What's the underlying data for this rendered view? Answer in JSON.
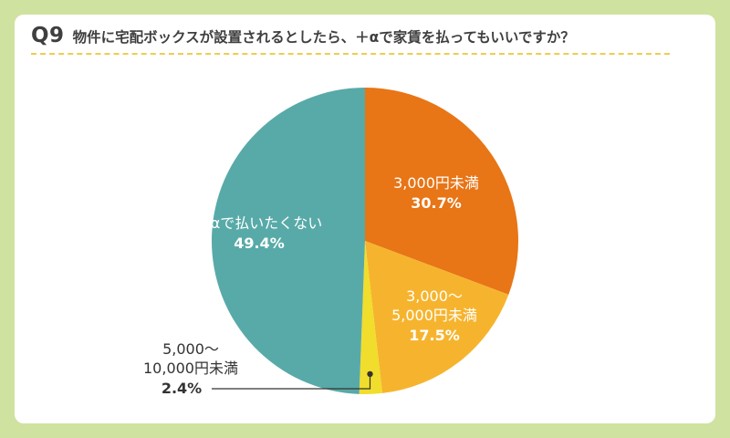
{
  "question": {
    "number": "Q9",
    "text": "物件に宅配ボックスが設置されるとしたら、＋αで家賃を払ってもいいですか？"
  },
  "chart_data": {
    "type": "pie",
    "start_angle": "12 o'clock",
    "direction": "clockwise",
    "slices": [
      {
        "label_lines": [
          "3,000円未満"
        ],
        "value": 30.7,
        "pct_label": "30.7%",
        "color": "#e87516",
        "label_color": "#ffffff"
      },
      {
        "label_lines": [
          "3,000〜",
          "5,000円未満"
        ],
        "value": 17.5,
        "pct_label": "17.5%",
        "color": "#f6b42e",
        "label_color": "#ffffff"
      },
      {
        "label_lines": [
          "5,000〜",
          "10,000円未満"
        ],
        "value": 2.4,
        "pct_label": "2.4%",
        "color": "#f1dd2c",
        "label_color": "#333333",
        "label_outside": true
      },
      {
        "label_lines": [
          "＋αで払いたくない"
        ],
        "value": 49.4,
        "pct_label": "49.4%",
        "color": "#58aaa8",
        "label_color": "#ffffff"
      }
    ]
  }
}
